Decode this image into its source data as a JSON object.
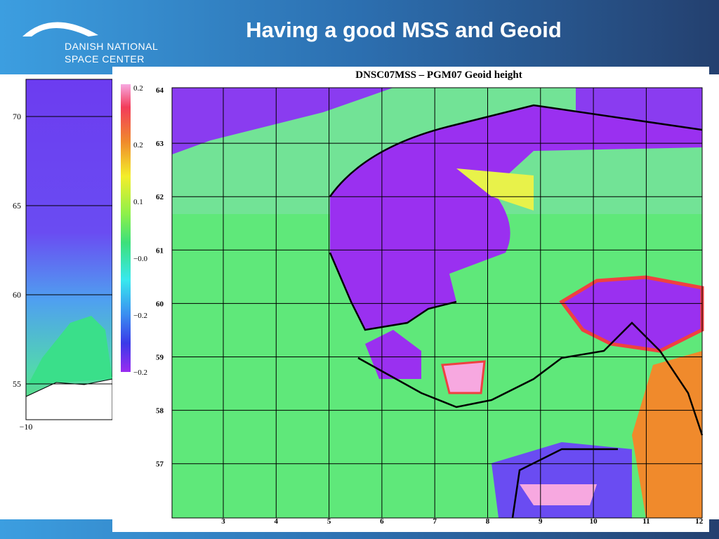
{
  "header": {
    "title": "Having a good MSS and Geoid",
    "logo_line1": "DANISH NATIONAL",
    "logo_line2": "SPACE CENTER"
  },
  "back_map": {
    "yticks": [
      "70",
      "65",
      "60",
      "55"
    ],
    "xticks": [
      "−10"
    ]
  },
  "map": {
    "title": "DNSC07MSS – PGM07 Geoid height",
    "colorbar_labels": [
      "0.2",
      "0.2",
      "0.1",
      "−0.0",
      "−0.2",
      "−0.2"
    ],
    "yticks": [
      "64",
      "63",
      "62",
      "61",
      "60",
      "59",
      "58",
      "57"
    ],
    "xticks": [
      "3",
      "4",
      "5",
      "6",
      "7",
      "8",
      "9",
      "10",
      "11",
      "12"
    ]
  }
}
